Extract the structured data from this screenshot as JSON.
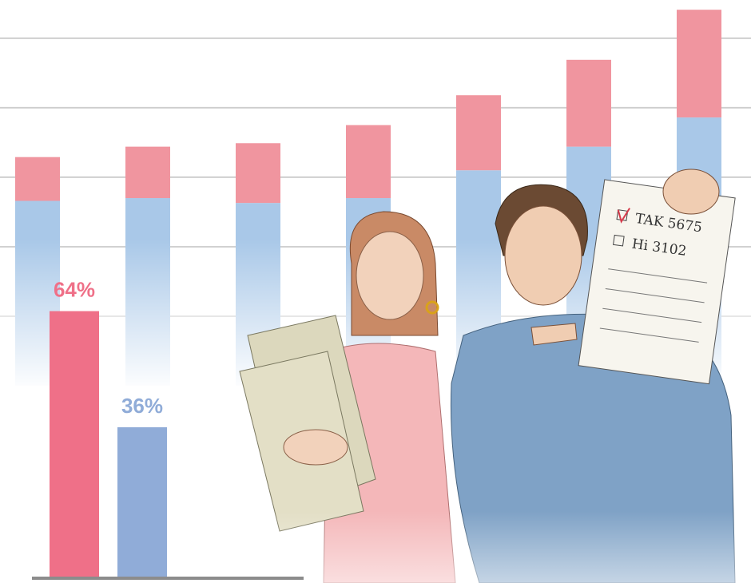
{
  "chart_data": [
    {
      "type": "bar",
      "stacked": true,
      "categories": [
        null,
        null,
        null,
        null,
        null,
        null,
        null
      ],
      "series": [
        {
          "color": "#a9c8e8",
          "values": [
            2.66,
            2.7,
            2.63,
            2.7,
            3.1,
            3.44,
            3.86
          ]
        },
        {
          "color": "#f0959f",
          "values": [
            0.63,
            0.74,
            0.86,
            1.05,
            1.08,
            1.25,
            1.55
          ]
        }
      ],
      "ylim": [
        0,
        5.55
      ],
      "yticks": [
        1,
        2,
        3,
        4,
        5
      ],
      "grid": true
    },
    {
      "type": "bar",
      "categories": [
        null,
        null
      ],
      "series": [
        {
          "colors": [
            "#ef7088",
            "#90acd8"
          ],
          "values": [
            64,
            36
          ],
          "value_labels": [
            "64%",
            "36%"
          ]
        }
      ],
      "ylim": [
        0,
        139
      ]
    }
  ],
  "illustration": {
    "paper_lines": [
      "TAK 5675",
      "Hi 3102"
    ]
  }
}
